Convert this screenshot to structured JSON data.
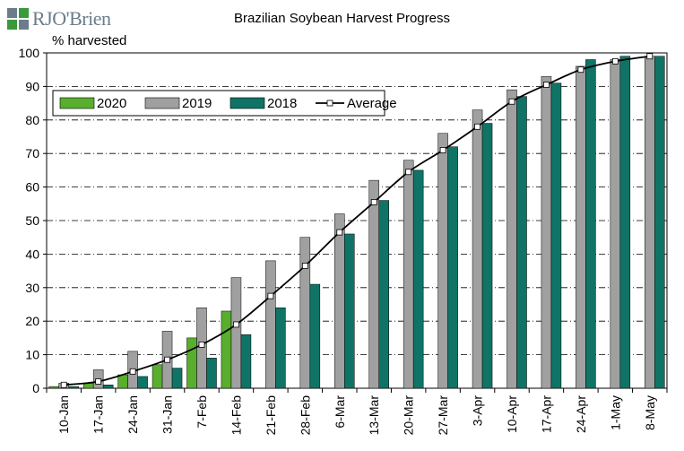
{
  "brand": {
    "logo_text": "RJO'Brien",
    "logo_color": "#6b7d8a",
    "logo_accent": "#3a9a3a"
  },
  "chart_data": {
    "type": "bar",
    "title": "Brazilian Soybean Harvest Progress",
    "ylabel": "% harvested",
    "xlabel": "",
    "ylim": [
      0,
      100
    ],
    "yticks": [
      0,
      10,
      20,
      30,
      40,
      50,
      60,
      70,
      80,
      90,
      100
    ],
    "grid": true,
    "legend_position": "top-left",
    "categories": [
      "10-Jan",
      "17-Jan",
      "24-Jan",
      "31-Jan",
      "7-Feb",
      "14-Feb",
      "21-Feb",
      "28-Feb",
      "6-Mar",
      "13-Mar",
      "20-Mar",
      "27-Mar",
      "3-Apr",
      "10-Apr",
      "17-Apr",
      "24-Apr",
      "1-May",
      "8-May"
    ],
    "series": [
      {
        "name": "2020",
        "kind": "bar",
        "color": "#5aae2e",
        "values": [
          0.5,
          1.5,
          4,
          7,
          15,
          23,
          null,
          null,
          null,
          null,
          null,
          null,
          null,
          null,
          null,
          null,
          null,
          null
        ]
      },
      {
        "name": "2019",
        "kind": "bar",
        "color": "#a0a0a0",
        "values": [
          1.5,
          5.5,
          11,
          17,
          24,
          33,
          38,
          45,
          52,
          62,
          68,
          76,
          83,
          89,
          93,
          96,
          98,
          99
        ]
      },
      {
        "name": "2018",
        "kind": "bar",
        "color": "#0f7466",
        "values": [
          0.5,
          1,
          3.5,
          6,
          9,
          16,
          24,
          31,
          46,
          56,
          65,
          72,
          79,
          87,
          91,
          98,
          99,
          99
        ]
      },
      {
        "name": "Average",
        "kind": "line",
        "color": "#000000",
        "values": [
          1,
          2,
          5,
          8.5,
          13,
          19,
          27.5,
          36.5,
          46.5,
          55.5,
          64.5,
          71,
          78,
          85.5,
          90.5,
          95,
          97.5,
          99
        ]
      }
    ]
  }
}
